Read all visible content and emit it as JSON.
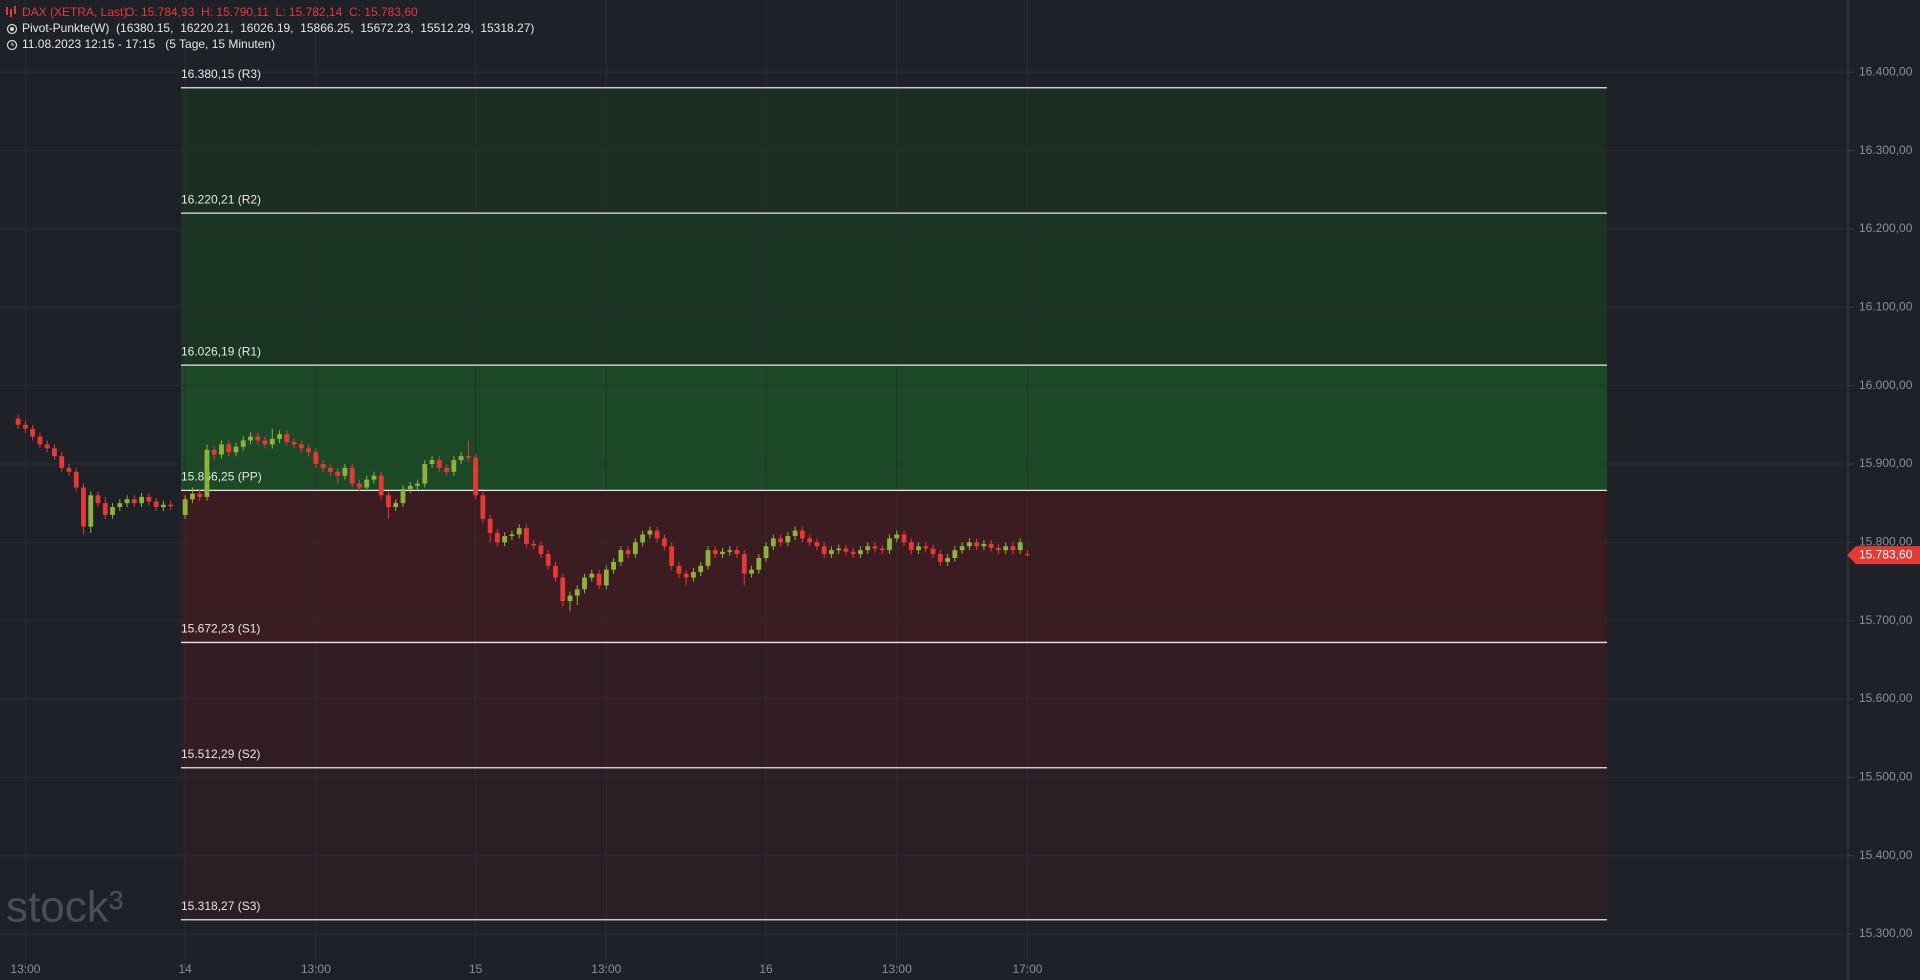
{
  "chart_data": {
    "type": "candlestick",
    "title": "DAX (XETRA, Last)",
    "ohlc_text": "O: 15.784,93  H: 15.790,11  L: 15.782,14  C: 15.783,60",
    "indicator": "Pivot-Punkte(W)  (16380.15,  16220.21,  16026.19,  15866.25,  15672.23,  15512.29,  15318.27)",
    "period": "11.08.2023 12:15 - 17:15   (5 Tage, 15 Minuten)",
    "watermark": "stock³",
    "up_color": "#8cb43c",
    "down_color": "#e53935",
    "ylim": [
      15265.6,
      16492.2
    ],
    "yticks": [
      {
        "value": 15300,
        "label": "15.300,00"
      },
      {
        "value": 15400,
        "label": "15.400,00"
      },
      {
        "value": 15500,
        "label": "15.500,00"
      },
      {
        "value": 15600,
        "label": "15.600,00"
      },
      {
        "value": 15700,
        "label": "15.700,00"
      },
      {
        "value": 15800,
        "label": "15.800,00"
      },
      {
        "value": 15900,
        "label": "15.900,00"
      },
      {
        "value": 16000,
        "label": "16.000,00"
      },
      {
        "value": 16100,
        "label": "16.100,00"
      },
      {
        "value": 16200,
        "label": "16.200,00"
      },
      {
        "value": 16300,
        "label": "16.300,00"
      },
      {
        "value": 16400,
        "label": "16.400,00"
      }
    ],
    "xlim": [
      -25.5,
      229
    ],
    "xticks": [
      {
        "value": -22,
        "label": "13:00"
      },
      {
        "value": 0,
        "label": "14"
      },
      {
        "value": 18,
        "label": "13:00"
      },
      {
        "value": 40,
        "label": "15"
      },
      {
        "value": 58,
        "label": "13:00"
      },
      {
        "value": 80,
        "label": "16"
      },
      {
        "value": 98,
        "label": "13:00"
      },
      {
        "value": 116,
        "label": "17:00"
      }
    ],
    "grid": true,
    "pivots": [
      {
        "value": 16380.15,
        "label": "16.380,15 (R3)"
      },
      {
        "value": 16220.21,
        "label": "16.220,21 (R2)"
      },
      {
        "value": 16026.19,
        "label": "16.026,19 (R1)"
      },
      {
        "value": 15866.25,
        "label": "15.866,25 (PP)"
      },
      {
        "value": 15672.23,
        "label": "15.672,23 (S1)"
      },
      {
        "value": 15512.29,
        "label": "15.512,29 (S2)"
      },
      {
        "value": 15318.27,
        "label": "15.318,27 (S3)"
      }
    ],
    "zone_colors": [
      "#1c2d22",
      "#1a3521",
      "#1c4a26",
      "#3b1c21",
      "#321d22",
      "#2a1f24"
    ],
    "last_price": {
      "value": 15783.6,
      "label": "15.783,60",
      "color": "#e53935"
    },
    "x": [
      -23,
      -22,
      -21,
      -20,
      -19,
      -18,
      -17,
      -16,
      -15,
      -14,
      -13,
      -12,
      -11,
      -10,
      -9,
      -8,
      -7,
      -6,
      -5,
      -4,
      -3,
      -2,
      0,
      1,
      2,
      3,
      4,
      5,
      6,
      7,
      8,
      9,
      10,
      11,
      12,
      13,
      14,
      15,
      16,
      17,
      18,
      19,
      20,
      21,
      22,
      23,
      24,
      25,
      26,
      27,
      28,
      29,
      30,
      31,
      32,
      33,
      34,
      35,
      36,
      37,
      38,
      39,
      40,
      41,
      42,
      43,
      44,
      45,
      46,
      47,
      48,
      49,
      50,
      51,
      52,
      53,
      54,
      55,
      56,
      57,
      58,
      59,
      60,
      61,
      62,
      63,
      64,
      65,
      66,
      67,
      68,
      69,
      70,
      71,
      72,
      73,
      74,
      75,
      76,
      77,
      78,
      79,
      80,
      81,
      82,
      83,
      84,
      85,
      86,
      87,
      88,
      89,
      90,
      91,
      92,
      93,
      94,
      95,
      96,
      97,
      98,
      99,
      100,
      101,
      102,
      103,
      104,
      105,
      106,
      107,
      108,
      109,
      110,
      111,
      112,
      113,
      114,
      115,
      116
    ],
    "open": [
      15958,
      15950,
      15945,
      15935,
      15925,
      15920,
      15910,
      15895,
      15890,
      15870,
      15820,
      15860,
      15850,
      15835,
      15845,
      15850,
      15855,
      15850,
      15858,
      15852,
      15845,
      15848,
      15835,
      15855,
      15862,
      15858,
      15918,
      15912,
      15925,
      15915,
      15922,
      15930,
      15935,
      15930,
      15925,
      15932,
      15938,
      15928,
      15925,
      15920,
      15915,
      15900,
      15895,
      15890,
      15885,
      15895,
      15875,
      15870,
      15880,
      15885,
      15860,
      15845,
      15850,
      15868,
      15872,
      15875,
      15900,
      15905,
      15895,
      15890,
      15905,
      15910,
      15908,
      15860,
      15830,
      15812,
      15800,
      15808,
      15810,
      15818,
      15798,
      15796,
      15785,
      15770,
      15755,
      15725,
      15732,
      15740,
      15755,
      15760,
      15745,
      15765,
      15775,
      15790,
      15785,
      15800,
      15810,
      15815,
      15805,
      15795,
      15770,
      15760,
      15755,
      15762,
      15770,
      15790,
      15785,
      15788,
      15790,
      15785,
      15760,
      15765,
      15780,
      15795,
      15805,
      15800,
      15808,
      15815,
      15805,
      15800,
      15795,
      15785,
      15790,
      15792,
      15788,
      15785,
      15790,
      15795,
      15792,
      15790,
      15805,
      15810,
      15800,
      15790,
      15795,
      15792,
      15785,
      15775,
      15780,
      15790,
      15795,
      15800,
      15795,
      15798,
      15793,
      15790,
      15795,
      15790,
      15784.93
    ],
    "high": [
      15963,
      15955,
      15950,
      15940,
      15930,
      15925,
      15915,
      15900,
      15895,
      15875,
      15865,
      15865,
      15858,
      15850,
      15855,
      15860,
      15860,
      15863,
      15863,
      15857,
      15853,
      15853,
      15860,
      15870,
      15867,
      15925,
      15923,
      15930,
      15930,
      15927,
      15935,
      15940,
      15940,
      15935,
      15945,
      15943,
      15943,
      15933,
      15930,
      15925,
      15920,
      15905,
      15900,
      15895,
      15900,
      15900,
      15880,
      15885,
      15890,
      15890,
      15865,
      15855,
      15873,
      15877,
      15880,
      15905,
      15910,
      15910,
      15900,
      15910,
      15915,
      15930,
      15913,
      15865,
      15835,
      15817,
      15813,
      15815,
      15823,
      15823,
      15803,
      15801,
      15790,
      15775,
      15760,
      15737,
      15745,
      15760,
      15765,
      15765,
      15770,
      15780,
      15795,
      15795,
      15805,
      15815,
      15820,
      15820,
      15810,
      15800,
      15775,
      15765,
      15767,
      15775,
      15795,
      15795,
      15793,
      15795,
      15795,
      15790,
      15770,
      15785,
      15800,
      15810,
      15810,
      15813,
      15820,
      15820,
      15810,
      15805,
      15800,
      15795,
      15797,
      15797,
      15793,
      15795,
      15800,
      15800,
      15797,
      15810,
      15815,
      15815,
      15805,
      15800,
      15800,
      15797,
      15790,
      15785,
      15795,
      15800,
      15805,
      15805,
      15803,
      15803,
      15798,
      15800,
      15800,
      15805,
      15790.11
    ],
    "low": [
      15945,
      15940,
      15930,
      15920,
      15915,
      15905,
      15890,
      15885,
      15865,
      15810,
      15812,
      15845,
      15830,
      15830,
      15840,
      15845,
      15845,
      15845,
      15847,
      15840,
      15840,
      15841,
      15830,
      15850,
      15853,
      15853,
      15905,
      15907,
      15910,
      15910,
      15917,
      15925,
      15925,
      15920,
      15920,
      15927,
      15923,
      15920,
      15915,
      15910,
      15895,
      15890,
      15885,
      15875,
      15880,
      15870,
      15865,
      15865,
      15875,
      15855,
      15830,
      15840,
      15845,
      15863,
      15867,
      15870,
      15895,
      15890,
      15885,
      15885,
      15900,
      15903,
      15855,
      15825,
      15800,
      15795,
      15795,
      15803,
      15805,
      15793,
      15791,
      15780,
      15765,
      15750,
      15718,
      15712,
      15720,
      15735,
      15750,
      15740,
      15740,
      15760,
      15770,
      15780,
      15780,
      15795,
      15805,
      15800,
      15790,
      15765,
      15755,
      15745,
      15750,
      15757,
      15765,
      15780,
      15780,
      15783,
      15780,
      15745,
      15755,
      15760,
      15775,
      15790,
      15795,
      15795,
      15803,
      15800,
      15795,
      15790,
      15780,
      15780,
      15785,
      15783,
      15780,
      15780,
      15785,
      15787,
      15785,
      15785,
      15800,
      15795,
      15785,
      15785,
      15787,
      15780,
      15770,
      15770,
      15775,
      15785,
      15790,
      15790,
      15790,
      15788,
      15785,
      15785,
      15785,
      15785,
      15782.14
    ],
    "close": [
      15950,
      15945,
      15935,
      15925,
      15920,
      15910,
      15895,
      15890,
      15870,
      15820,
      15860,
      15850,
      15835,
      15845,
      15850,
      15855,
      15850,
      15858,
      15852,
      15845,
      15848,
      15846,
      15855,
      15862,
      15858,
      15918,
      15912,
      15925,
      15915,
      15922,
      15930,
      15935,
      15930,
      15925,
      15932,
      15938,
      15928,
      15925,
      15920,
      15915,
      15900,
      15895,
      15890,
      15885,
      15895,
      15875,
      15870,
      15880,
      15885,
      15860,
      15845,
      15850,
      15868,
      15872,
      15875,
      15900,
      15905,
      15895,
      15890,
      15905,
      15910,
      15908,
      15860,
      15830,
      15812,
      15800,
      15808,
      15810,
      15818,
      15798,
      15796,
      15785,
      15770,
      15755,
      15725,
      15732,
      15740,
      15755,
      15760,
      15745,
      15765,
      15775,
      15790,
      15785,
      15800,
      15810,
      15815,
      15805,
      15795,
      15770,
      15760,
      15755,
      15762,
      15770,
      15790,
      15785,
      15788,
      15790,
      15785,
      15760,
      15765,
      15780,
      15795,
      15805,
      15800,
      15808,
      15815,
      15805,
      15800,
      15795,
      15785,
      15790,
      15792,
      15788,
      15785,
      15790,
      15795,
      15792,
      15790,
      15805,
      15810,
      15800,
      15790,
      15795,
      15792,
      15785,
      15775,
      15780,
      15790,
      15795,
      15800,
      15795,
      15798,
      15793,
      15790,
      15795,
      15790,
      15800,
      15783.6
    ]
  }
}
